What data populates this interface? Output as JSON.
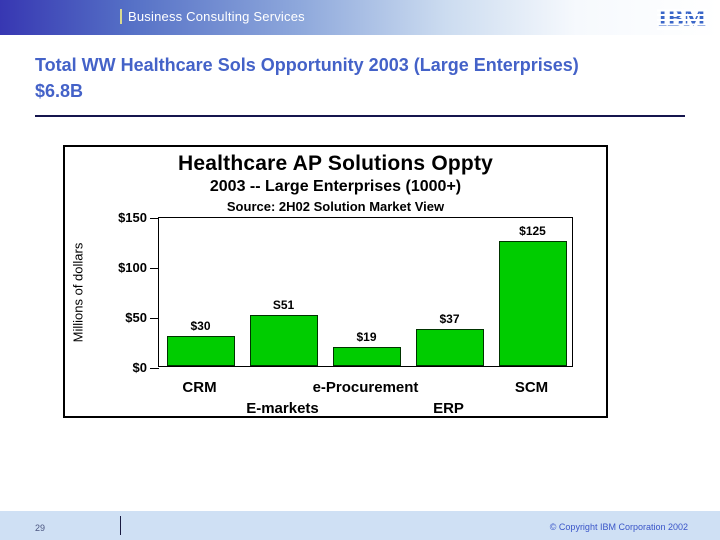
{
  "header": {
    "brand": "Business Consulting Services",
    "logo": "IBM"
  },
  "title": "Total WW Healthcare Sols Opportunity 2003 (Large Enterprises) $6.8B",
  "chart_data": {
    "type": "bar",
    "title": "Healthcare AP Solutions Oppty",
    "subtitle": "2003 -- Large Enterprises (1000+)",
    "source": "Source: 2H02 Solution Market View",
    "ylabel": "Millions of dollars",
    "categories": [
      "CRM",
      "E-markets",
      "e-Procurement",
      "ERP",
      "SCM"
    ],
    "values": [
      30,
      51,
      19,
      37,
      125
    ],
    "bar_labels": [
      "$30",
      "S51",
      "$19",
      "$37",
      "$125"
    ],
    "ytick_labels": [
      "$150",
      "$100",
      "$50",
      "$0"
    ],
    "ylim": [
      0,
      150
    ],
    "bar_color": "#00CC00",
    "grid": false,
    "legend_position": "none"
  },
  "footer": {
    "page_number": "29",
    "copyright": "© Copyright IBM Corporation 2002"
  },
  "colors": {
    "title_blue": "#4462C8",
    "header_gradient_start": "#3737B2",
    "footer_band": "#CFE0F4",
    "bar_green": "#00CC00",
    "ibm_logo_blue": "#3A66C8"
  }
}
